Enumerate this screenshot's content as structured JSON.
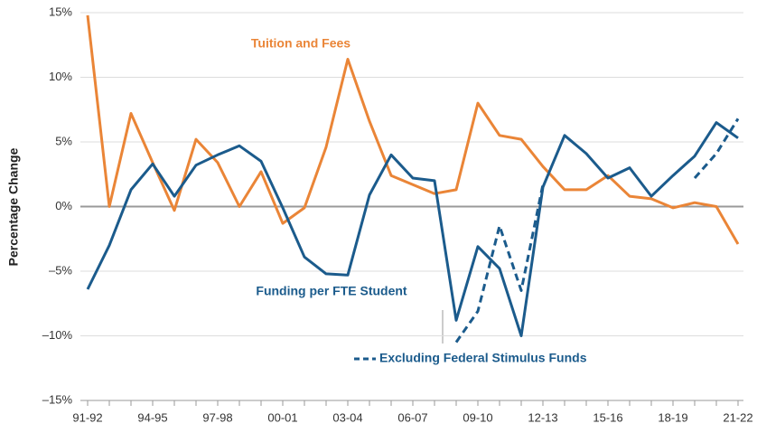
{
  "chart_data": {
    "type": "line",
    "ylabel": "Percentage Change",
    "categories": [
      "91-92",
      null,
      null,
      "94-95",
      null,
      null,
      "97-98",
      null,
      null,
      "00-01",
      null,
      null,
      "03-04",
      null,
      null,
      "06-07",
      null,
      null,
      "09-10",
      null,
      null,
      "12-13",
      null,
      null,
      "15-16",
      null,
      null,
      "18-19",
      null,
      null,
      "21-22"
    ],
    "series": [
      {
        "name": "Tuition and Fees",
        "color": "#ea8537",
        "dash": false,
        "values": [
          14.8,
          0,
          7.2,
          3.4,
          -0.3,
          5.2,
          3.4,
          0,
          2.7,
          -1.3,
          -0.1,
          4.6,
          11.4,
          6.6,
          2.4,
          1.7,
          1.0,
          1.3,
          8.0,
          5.5,
          5.2,
          3.1,
          1.3,
          1.3,
          2.4,
          0.8,
          0.6,
          -0.1,
          0.3,
          0,
          -2.9
        ]
      },
      {
        "name": "Funding per FTE Student",
        "color": "#1b5b8c",
        "dash": false,
        "values": [
          -6.4,
          -3.0,
          1.3,
          3.3,
          0.8,
          3.2,
          4.0,
          4.7,
          3.5,
          -0.1,
          -3.9,
          -5.2,
          -5.3,
          0.9,
          4.0,
          2.2,
          2.0,
          -8.8,
          -3.1,
          -4.8,
          -10.0,
          1.5,
          5.5,
          4.1,
          2.2,
          3.0,
          0.8,
          2.4,
          3.9,
          6.5,
          5.3
        ]
      },
      {
        "name": "Excluding Federal Stimulus Funds",
        "color": "#1b5b8c",
        "dash": true,
        "values": [
          null,
          null,
          null,
          null,
          null,
          null,
          null,
          null,
          null,
          null,
          null,
          null,
          null,
          null,
          null,
          null,
          null,
          -10.5,
          -8.1,
          -1.5,
          -6.5,
          1.7,
          null,
          null,
          null,
          null,
          null,
          null,
          2.2,
          4.1,
          6.8
        ]
      }
    ],
    "ylim": [
      -15,
      15
    ],
    "yticks": [
      {
        "value": 15,
        "label": "15%"
      },
      {
        "value": 10,
        "label": "10%"
      },
      {
        "value": 5,
        "label": "5%"
      },
      {
        "value": 0,
        "label": "0%"
      },
      {
        "value": -5,
        "label": "–5%"
      },
      {
        "value": -10,
        "label": "–10%"
      },
      {
        "value": -15,
        "label": "–15%"
      }
    ],
    "grid": true
  }
}
